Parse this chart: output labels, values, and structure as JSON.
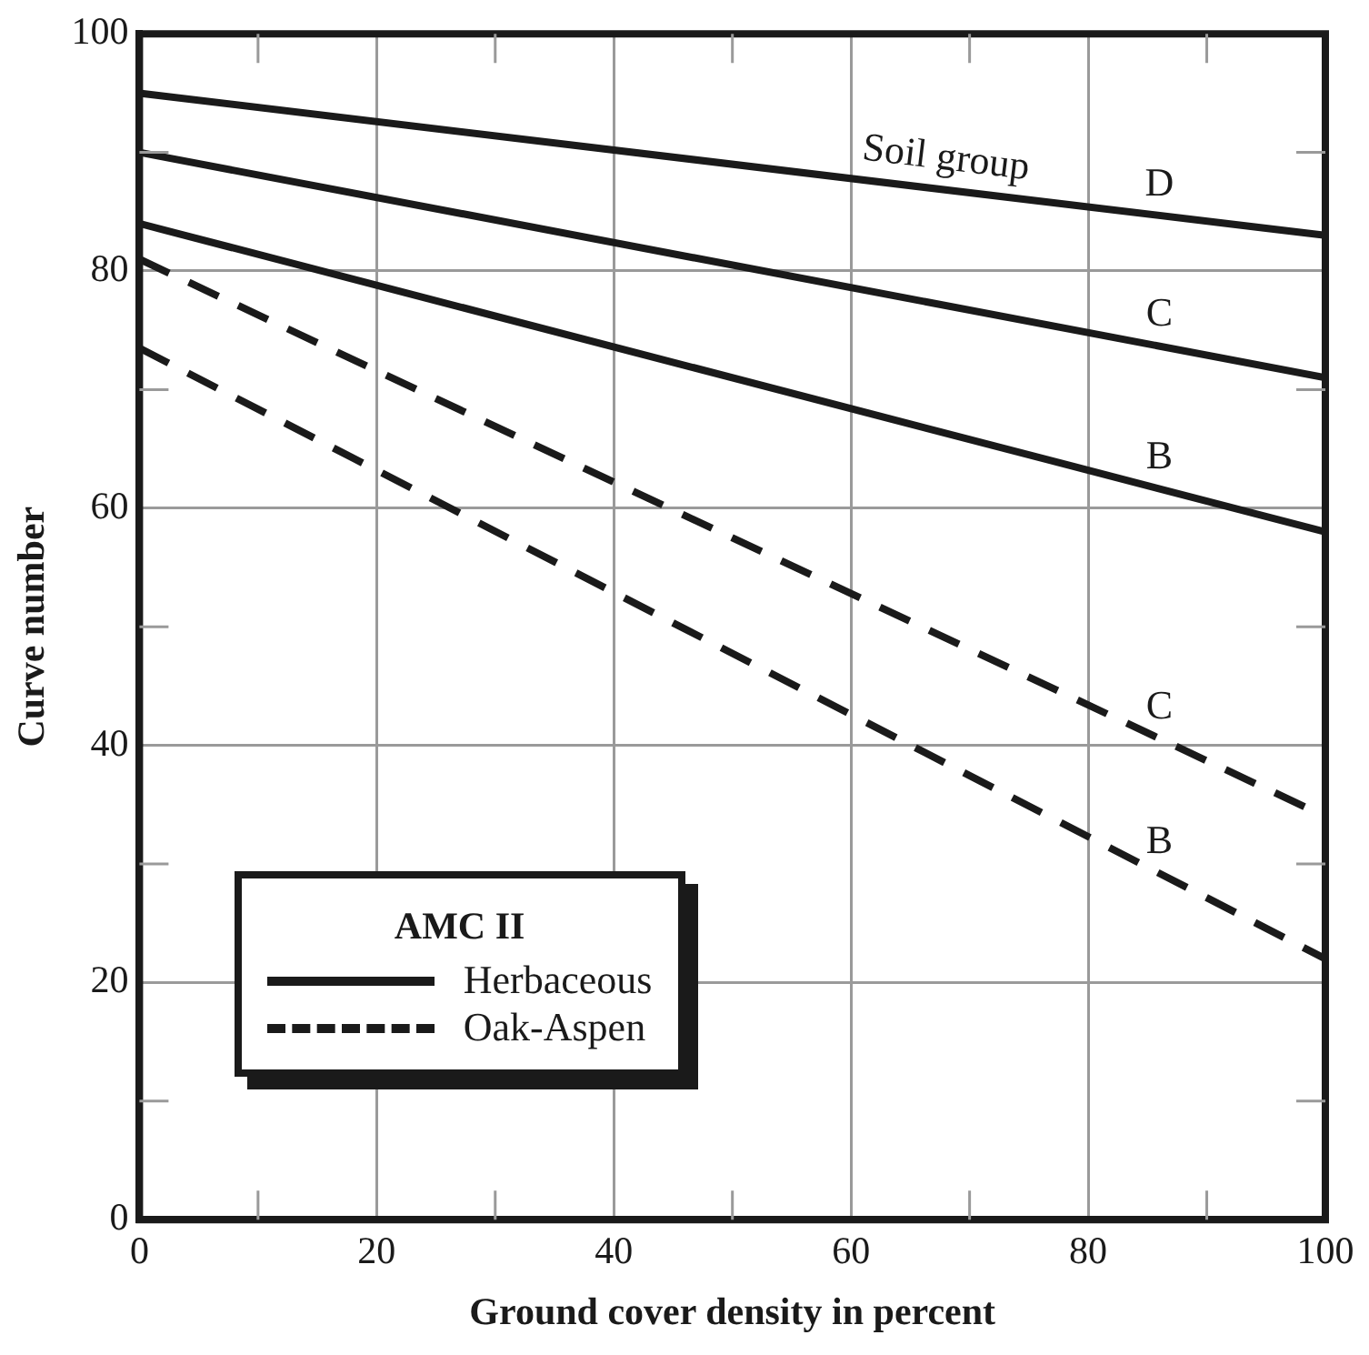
{
  "chart_data": {
    "type": "line",
    "xlabel": "Ground cover density in percent",
    "ylabel": "Curve number",
    "legend_title": "AMC II",
    "legend": "bottom left",
    "grid": true,
    "marker": "none",
    "xlim": [
      0,
      100
    ],
    "ylim": [
      0,
      100
    ],
    "xticks": [
      0,
      {
        "value": 10,
        "label": null
      },
      20,
      {
        "value": 30,
        "label": null
      },
      40,
      {
        "value": 50,
        "label": null
      },
      60,
      {
        "value": 70,
        "label": null
      },
      80,
      {
        "value": 90,
        "label": null
      },
      100
    ],
    "yticks": [
      0,
      {
        "value": 10,
        "label": null
      },
      20,
      {
        "value": 30,
        "label": null
      },
      40,
      {
        "value": 50,
        "label": null
      },
      60,
      {
        "value": 70,
        "label": null
      },
      80,
      {
        "value": 90,
        "label": null
      },
      100
    ],
    "x": [
      0,
      100
    ],
    "series": [
      {
        "color": "#1a1a1a",
        "values": [
          95,
          83
        ],
        "line_style": "solid"
      },
      {
        "color": "#1a1a1a",
        "values": [
          90,
          71
        ],
        "line_style": "solid"
      },
      {
        "name": "Herbaceous",
        "color": "#1a1a1a",
        "values": [
          84,
          58
        ],
        "line_style": "solid"
      },
      {
        "color": "#1a1a1a",
        "values": [
          81,
          34
        ],
        "line_style": "dashed"
      },
      {
        "name": "Oak-Aspen",
        "color": "#1a1a1a",
        "values": [
          73.5,
          22
        ],
        "line_style": "dashed"
      }
    ],
    "annotations": [
      "Soil group",
      "D",
      "C",
      "B",
      "C",
      "B"
    ]
  }
}
